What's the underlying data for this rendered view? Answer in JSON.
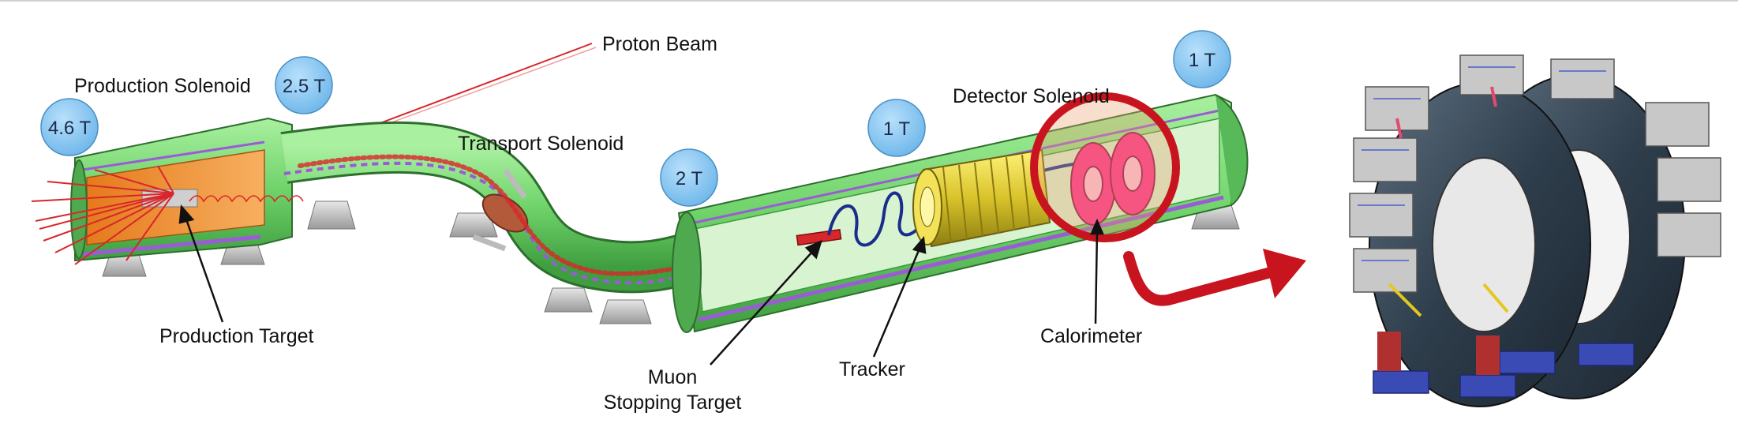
{
  "labels": {
    "proton_beam": "Proton Beam",
    "production_solenoid": "Production Solenoid",
    "transport_solenoid": "Transport Solenoid",
    "detector_solenoid": "Detector Solenoid",
    "production_target": "Production Target",
    "muon_stopping_target_line1": "Muon",
    "muon_stopping_target_line2": "Stopping Target",
    "tracker": "Tracker",
    "calorimeter": "Calorimeter"
  },
  "field_badges": {
    "production_inner": "4.6 T",
    "production_outer": "2.5 T",
    "transport_end": "2 T",
    "detector_mid": "1 T",
    "detector_end": "1 T"
  },
  "colors": {
    "solenoid_green": "#7ee07a",
    "solenoid_dark": "#3d9a3c",
    "production_orange": "#f39a3a",
    "badge_blue": "#7fc3f2",
    "tracker_yellow": "#e6d43c",
    "calo_pink": "#ff2d8a",
    "highlight_red": "#c8141e",
    "beam_red": "#d9262b"
  }
}
